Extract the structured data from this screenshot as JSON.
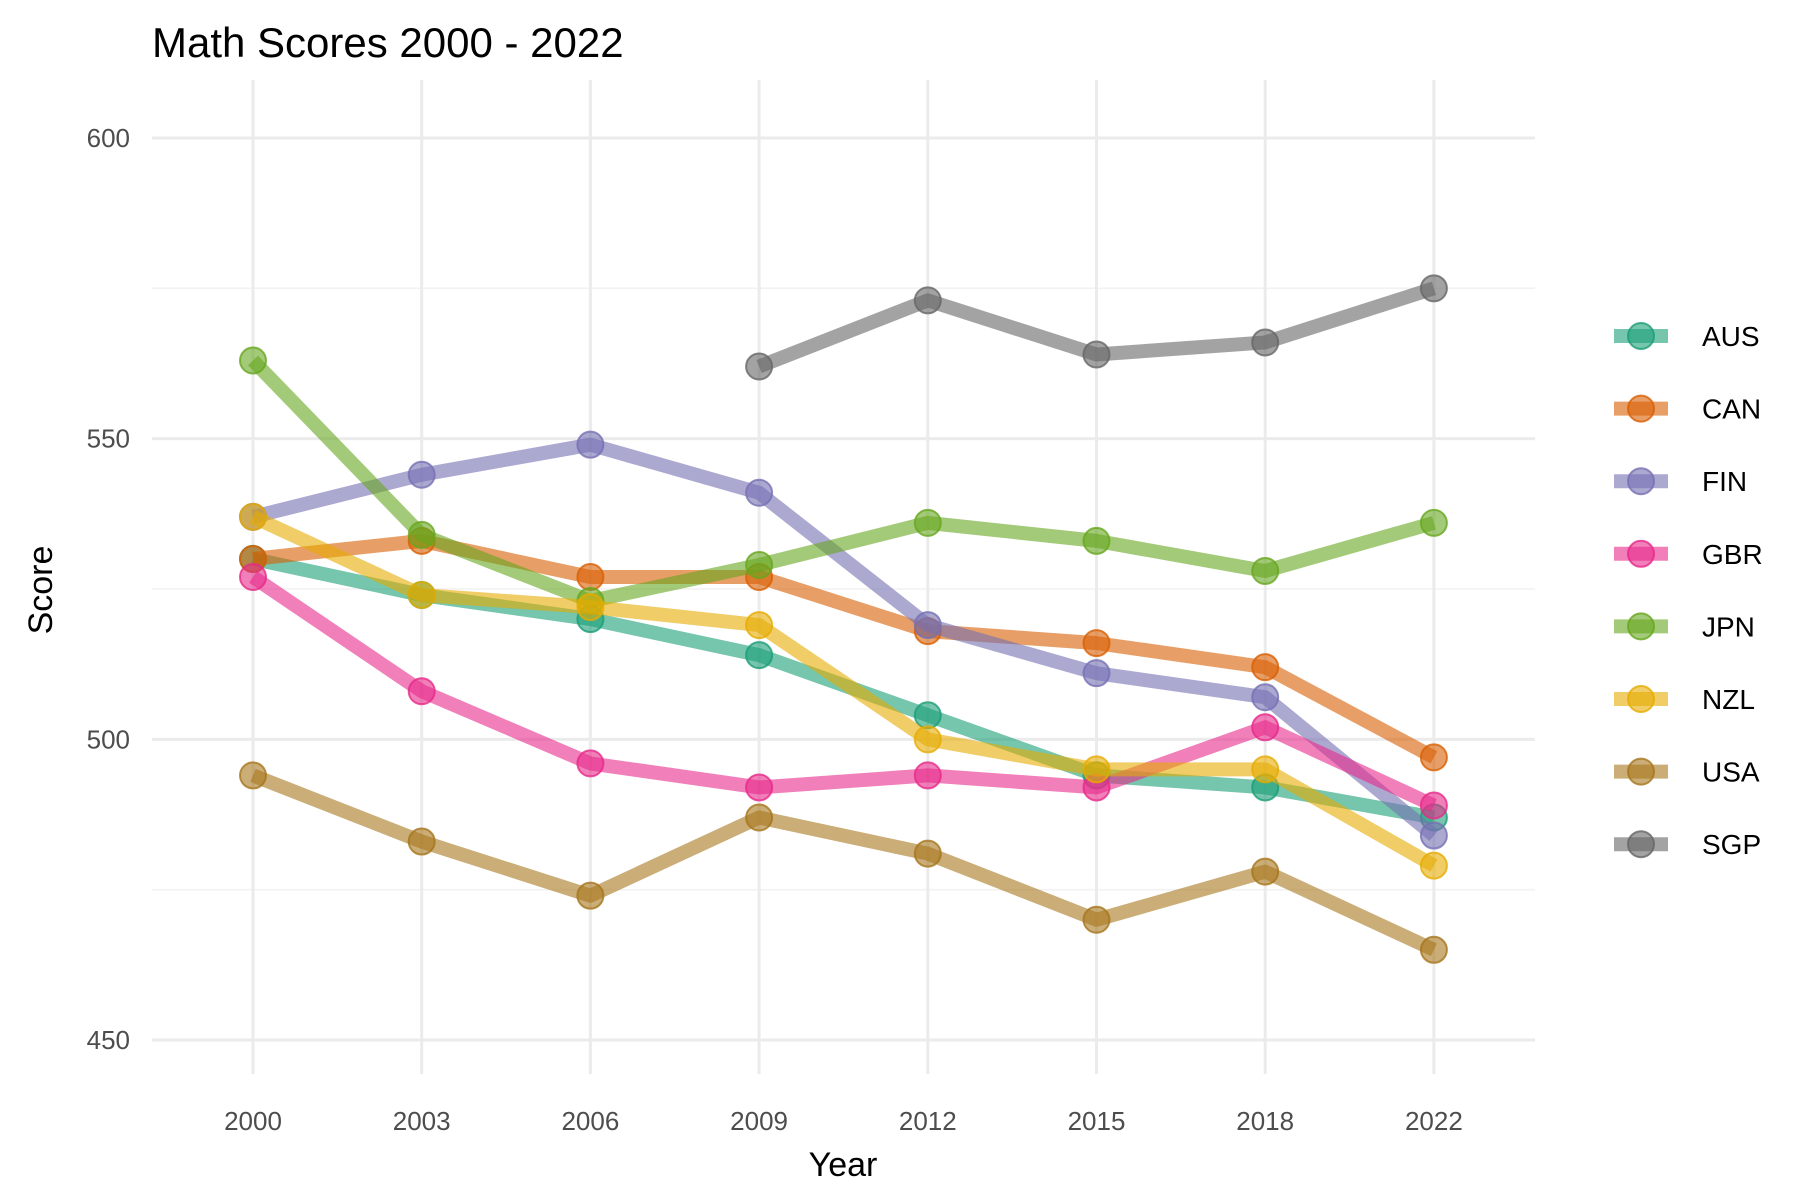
{
  "chart_data": {
    "type": "line",
    "title": "Math Scores 2000 - 2022",
    "xlabel": "Year",
    "ylabel": "Score",
    "x": [
      "2000",
      "2003",
      "2006",
      "2009",
      "2012",
      "2015",
      "2018",
      "2022"
    ],
    "ylim": [
      440,
      607
    ],
    "yticks": [
      450,
      500,
      550,
      600
    ],
    "grid": true,
    "legend_position": "right",
    "series": [
      {
        "name": "AUS",
        "color": "#1B9E77",
        "values": [
          530,
          524,
          520,
          514,
          504,
          494,
          492,
          487
        ]
      },
      {
        "name": "CAN",
        "color": "#D95F02",
        "values": [
          530,
          533,
          527,
          527,
          518,
          516,
          512,
          497
        ]
      },
      {
        "name": "FIN",
        "color": "#7570B3",
        "values": [
          537,
          544,
          549,
          541,
          519,
          511,
          507,
          484
        ]
      },
      {
        "name": "GBR",
        "color": "#E7298A",
        "values": [
          527,
          508,
          496,
          492,
          494,
          492,
          502,
          489
        ]
      },
      {
        "name": "JPN",
        "color": "#66A61E",
        "values": [
          563,
          534,
          523,
          529,
          536,
          533,
          528,
          536
        ]
      },
      {
        "name": "NZL",
        "color": "#E6AB02",
        "values": [
          537,
          524,
          522,
          519,
          500,
          495,
          495,
          479
        ]
      },
      {
        "name": "USA",
        "color": "#A6761D",
        "values": [
          494,
          483,
          474,
          487,
          481,
          470,
          478,
          465
        ]
      },
      {
        "name": "SGP",
        "color": "#666666",
        "values": [
          null,
          null,
          null,
          562,
          573,
          564,
          566,
          575
        ]
      }
    ]
  }
}
